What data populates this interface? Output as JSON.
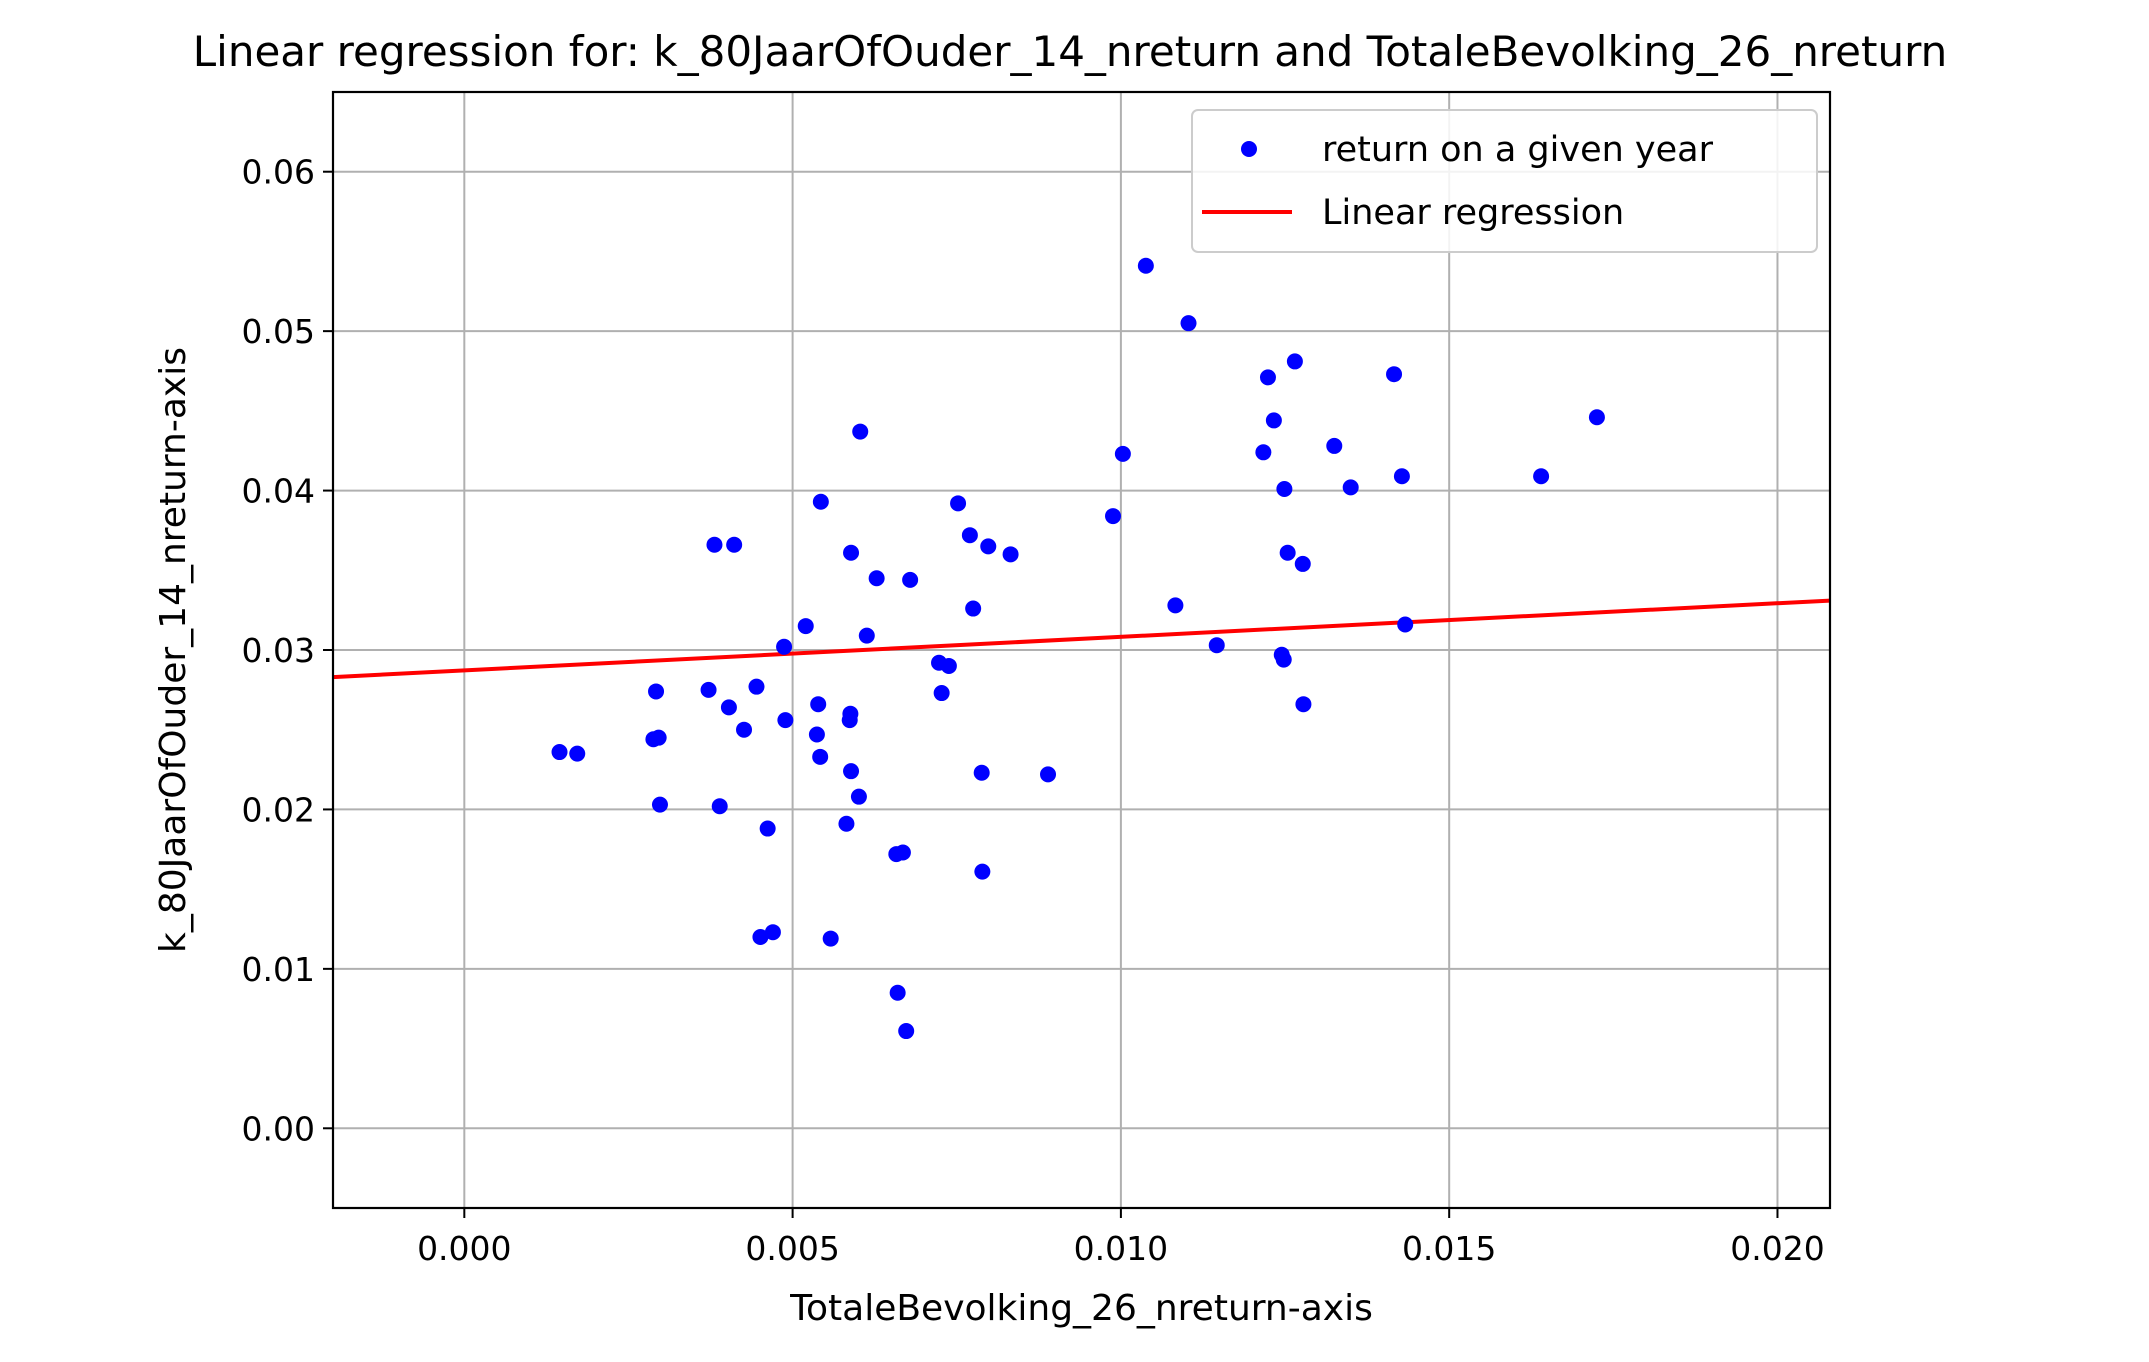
{
  "chart_data": {
    "type": "scatter",
    "title": "Linear regression for: k_80JaarOfOuder_14_nreturn and TotaleBevolking_26_nreturn",
    "xlabel": "TotaleBevolking_26_nreturn-axis",
    "ylabel": "k_80JaarOfOuder_14_nreturn-axis",
    "xlim": [
      -0.002,
      0.0208
    ],
    "ylim": [
      -0.005,
      0.065
    ],
    "x_ticks": [
      0.0,
      0.005,
      0.01,
      0.015,
      0.02
    ],
    "x_tick_labels": [
      "0.000",
      "0.005",
      "0.010",
      "0.015",
      "0.020"
    ],
    "y_ticks": [
      0.0,
      0.01,
      0.02,
      0.03,
      0.04,
      0.05,
      0.06
    ],
    "y_tick_labels": [
      "0.00",
      "0.01",
      "0.02",
      "0.03",
      "0.04",
      "0.05",
      "0.06"
    ],
    "grid": true,
    "legend_position": "top-right",
    "series": [
      {
        "name": "return on a given year",
        "kind": "scatter",
        "color": "#0000ff",
        "points": [
          [
            0.00145,
            0.0236
          ],
          [
            0.00172,
            0.0235
          ],
          [
            0.00288,
            0.0244
          ],
          [
            0.00292,
            0.0274
          ],
          [
            0.00296,
            0.0245
          ],
          [
            0.00298,
            0.0203
          ],
          [
            0.00372,
            0.0275
          ],
          [
            0.00381,
            0.0366
          ],
          [
            0.00389,
            0.0202
          ],
          [
            0.00403,
            0.0264
          ],
          [
            0.00411,
            0.0366
          ],
          [
            0.00426,
            0.025
          ],
          [
            0.00445,
            0.0277
          ],
          [
            0.00451,
            0.012
          ],
          [
            0.00462,
            0.0188
          ],
          [
            0.0047,
            0.0123
          ],
          [
            0.00487,
            0.0302
          ],
          [
            0.00489,
            0.0256
          ],
          [
            0.0052,
            0.0315
          ],
          [
            0.00537,
            0.0247
          ],
          [
            0.00539,
            0.0266
          ],
          [
            0.00542,
            0.0233
          ],
          [
            0.00543,
            0.0393
          ],
          [
            0.00558,
            0.0119
          ],
          [
            0.00582,
            0.0191
          ],
          [
            0.00587,
            0.0256
          ],
          [
            0.00588,
            0.026
          ],
          [
            0.00589,
            0.0361
          ],
          [
            0.00589,
            0.0224
          ],
          [
            0.00601,
            0.0208
          ],
          [
            0.00603,
            0.0437
          ],
          [
            0.00613,
            0.0309
          ],
          [
            0.00628,
            0.0345
          ],
          [
            0.00658,
            0.0172
          ],
          [
            0.0066,
            0.0085
          ],
          [
            0.00668,
            0.0173
          ],
          [
            0.00673,
            0.0061
          ],
          [
            0.00679,
            0.0344
          ],
          [
            0.00723,
            0.0292
          ],
          [
            0.00727,
            0.0273
          ],
          [
            0.00738,
            0.029
          ],
          [
            0.00752,
            0.0392
          ],
          [
            0.0077,
            0.0372
          ],
          [
            0.00775,
            0.0326
          ],
          [
            0.00788,
            0.0223
          ],
          [
            0.00789,
            0.0161
          ],
          [
            0.00798,
            0.0365
          ],
          [
            0.00832,
            0.036
          ],
          [
            0.00889,
            0.0222
          ],
          [
            0.00988,
            0.0384
          ],
          [
            0.01003,
            0.0423
          ],
          [
            0.01038,
            0.0541
          ],
          [
            0.01083,
            0.0328
          ],
          [
            0.01103,
            0.0505
          ],
          [
            0.01146,
            0.0303
          ],
          [
            0.01217,
            0.0424
          ],
          [
            0.01224,
            0.0471
          ],
          [
            0.01233,
            0.0444
          ],
          [
            0.01245,
            0.0297
          ],
          [
            0.01248,
            0.0294
          ],
          [
            0.01249,
            0.0401
          ],
          [
            0.01254,
            0.0361
          ],
          [
            0.01265,
            0.0481
          ],
          [
            0.01277,
            0.0354
          ],
          [
            0.01278,
            0.0266
          ],
          [
            0.01325,
            0.0428
          ],
          [
            0.0135,
            0.0402
          ],
          [
            0.01416,
            0.0473
          ],
          [
            0.01428,
            0.0409
          ],
          [
            0.01433,
            0.0316
          ],
          [
            0.0164,
            0.0409
          ],
          [
            0.01725,
            0.0446
          ]
        ]
      },
      {
        "name": "Linear regression",
        "kind": "line",
        "color": "#ff0000",
        "points": [
          [
            -0.002,
            0.0283
          ],
          [
            0.0208,
            0.0331
          ]
        ]
      }
    ]
  }
}
